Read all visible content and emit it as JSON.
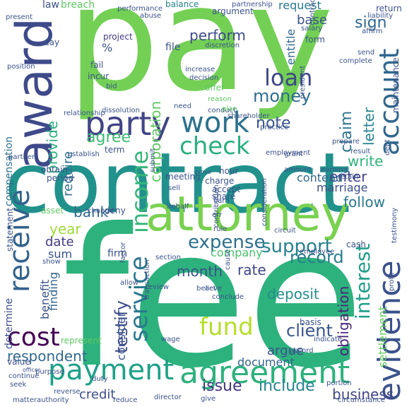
{
  "word_cloud": {
    "words": [
      {
        "text": "fee",
        "color": "#2db27d",
        "rotate": false
      },
      {
        "text": "pay",
        "color": "#73d055",
        "rotate": false
      },
      {
        "text": "contract",
        "color": "#21918c",
        "rotate": false
      },
      {
        "text": "attorney",
        "color": "#7ad151",
        "rotate": false
      },
      {
        "text": "award",
        "color": "#3e4a89",
        "rotate": true
      },
      {
        "text": "payment",
        "color": "#1fa187",
        "rotate": false
      },
      {
        "text": "agreement",
        "color": "#2db27d",
        "rotate": false
      },
      {
        "text": "evidence",
        "color": "#3b528b",
        "rotate": true
      },
      {
        "text": "party",
        "color": "#414487",
        "rotate": false
      },
      {
        "text": "work",
        "color": "#2c728e",
        "rotate": false
      },
      {
        "text": "check",
        "color": "#29af7f",
        "rotate": false
      },
      {
        "text": "account",
        "color": "#31688e",
        "rotate": true
      },
      {
        "text": "cost",
        "color": "#440154",
        "rotate": false
      },
      {
        "text": "receive",
        "color": "#33638d",
        "rotate": true
      },
      {
        "text": "service",
        "color": "#2a788e",
        "rotate": true
      },
      {
        "text": "fund",
        "color": "#b5de2b",
        "rotate": false
      },
      {
        "text": "income",
        "color": "#35b779",
        "rotate": true
      },
      {
        "text": "expense",
        "color": "#2d708e",
        "rotate": false
      },
      {
        "text": "support",
        "color": "#26828e",
        "rotate": false
      },
      {
        "text": "loan",
        "color": "#3f4788",
        "rotate": false
      },
      {
        "text": "money",
        "color": "#2e6e8e",
        "rotate": false
      },
      {
        "text": "interest",
        "color": "#1f9e89",
        "rotate": true
      },
      {
        "text": "client",
        "color": "#39568c",
        "rotate": false
      },
      {
        "text": "record",
        "color": "#287d8e",
        "rotate": false
      },
      {
        "text": "testify",
        "color": "#3e4c8a",
        "rotate": true
      },
      {
        "text": "include",
        "color": "#25848e",
        "rotate": false
      },
      {
        "text": "issue",
        "color": "#463480",
        "rotate": false
      },
      {
        "text": "respondent",
        "color": "#31688e",
        "rotate": false
      },
      {
        "text": "provide",
        "color": "#2ab07f",
        "rotate": true
      },
      {
        "text": "agree",
        "color": "#3dbc74",
        "rotate": false
      },
      {
        "text": "claim",
        "color": "#2c738e",
        "rotate": true
      },
      {
        "text": "letter",
        "color": "#25838e",
        "rotate": true
      },
      {
        "text": "note",
        "color": "#39558c",
        "rotate": false
      },
      {
        "text": "corporation",
        "color": "#5ec962",
        "rotate": true
      },
      {
        "text": "perform",
        "color": "#3e4989",
        "rotate": false
      },
      {
        "text": "bank",
        "color": "#31688e",
        "rotate": false
      },
      {
        "text": "year",
        "color": "#a0da39",
        "rotate": false
      },
      {
        "text": "rate",
        "color": "#404688",
        "rotate": false
      },
      {
        "text": "month",
        "color": "#3b528b",
        "rotate": false
      },
      {
        "text": "deposit",
        "color": "#228c8d",
        "rotate": false
      },
      {
        "text": "obligation",
        "color": "#482677",
        "rotate": true
      },
      {
        "text": "enter",
        "color": "#414487",
        "rotate": false
      },
      {
        "text": "write",
        "color": "#2fb47c",
        "rotate": false
      },
      {
        "text": "follow",
        "color": "#2a788e",
        "rotate": false
      },
      {
        "text": "business",
        "color": "#404387",
        "rotate": false
      },
      {
        "text": "credit",
        "color": "#3e4c8a",
        "rotate": false
      },
      {
        "text": "company",
        "color": "#4ac16d",
        "rotate": false
      },
      {
        "text": "argue",
        "color": "#3b528b",
        "rotate": false
      },
      {
        "text": "date",
        "color": "#443983",
        "rotate": false
      },
      {
        "text": "settlement",
        "color": "#65cb5e",
        "rotate": true
      },
      {
        "text": "compensation",
        "color": "#2e6f8e",
        "rotate": true
      },
      {
        "text": "determine",
        "color": "#3c4f8a",
        "rotate": true
      },
      {
        "text": "benefit",
        "color": "#3b528b",
        "rotate": true
      },
      {
        "text": "finding",
        "color": "#32648e",
        "rotate": true
      },
      {
        "text": "document",
        "color": "#32658e",
        "rotate": false
      },
      {
        "text": "require",
        "color": "#2d718e",
        "rotate": true
      },
      {
        "text": "consider",
        "color": "#3a548c",
        "rotate": true
      },
      {
        "text": "marriage",
        "color": "#3d4e8a",
        "rotate": false
      },
      {
        "text": "contend",
        "color": "#31688e",
        "rotate": false
      },
      {
        "text": "entitle",
        "color": "#31688e",
        "rotate": true
      },
      {
        "text": "sign",
        "color": "#31688e",
        "rotate": false
      },
      {
        "text": "request",
        "color": "#2a788e",
        "rotate": false
      },
      {
        "text": "base",
        "color": "#3b528b",
        "rotate": false
      },
      {
        "text": "law",
        "color": "#3b528b",
        "rotate": false
      },
      {
        "text": "breach",
        "color": "#5ec962",
        "rotate": false
      },
      {
        "text": "balance",
        "color": "#25838e",
        "rotate": false
      },
      {
        "text": "project",
        "color": "#443a83",
        "rotate": false
      },
      {
        "text": "file",
        "color": "#3b528b",
        "rotate": false
      },
      {
        "text": "fail",
        "color": "#3b528b",
        "rotate": false
      },
      {
        "text": "incur",
        "color": "#3b528b",
        "rotate": false
      },
      {
        "text": "term",
        "color": "#3b528b",
        "rotate": false
      },
      {
        "text": "sum",
        "color": "#3b528b",
        "rotate": false
      },
      {
        "text": "firm",
        "color": "#3b528b",
        "rotate": false
      },
      {
        "text": "hour",
        "color": "#3b528b",
        "rotate": false
      },
      {
        "text": "charge",
        "color": "#3b528b",
        "rotate": false
      },
      {
        "text": "accept",
        "color": "#3b528b",
        "rotate": false
      },
      {
        "text": "meeting",
        "color": "#3b528b",
        "rotate": false
      },
      {
        "text": "establish",
        "color": "#3b528b",
        "rotate": false
      },
      {
        "text": "asset",
        "color": "#5ec962",
        "rotate": false
      },
      {
        "text": "conduct",
        "color": "#3b528b",
        "rotate": false
      },
      {
        "text": "need",
        "color": "#3b528b",
        "rotate": false
      },
      {
        "text": "offer",
        "color": "#5ec962",
        "rotate": false
      },
      {
        "text": "salary",
        "color": "#3b528b",
        "rotate": false
      },
      {
        "text": "form",
        "color": "#3b528b",
        "rotate": false
      },
      {
        "text": "employment",
        "color": "#3b528b",
        "rotate": false
      },
      {
        "text": "represent",
        "color": "#5ec962",
        "rotate": false
      },
      {
        "text": "duty",
        "color": "#3b528b",
        "rotate": false
      },
      {
        "text": "wage",
        "color": "#3b528b",
        "rotate": false
      },
      {
        "text": "accord",
        "color": "#3b528b",
        "rotate": false
      },
      {
        "text": "basis",
        "color": "#3b528b",
        "rotate": false
      },
      {
        "text": "indicate",
        "color": "#3b528b",
        "rotate": false
      },
      {
        "text": "cash",
        "color": "#3b528b",
        "rotate": false
      },
      {
        "text": "result",
        "color": "#3b528b",
        "rotate": false
      },
      {
        "text": "statement",
        "color": "#3b528b",
        "rotate": true
      },
      {
        "text": "increase",
        "color": "#3b528b",
        "rotate": false
      },
      {
        "text": "decision",
        "color": "#3b528b",
        "rotate": false
      },
      {
        "text": "bid",
        "color": "#3b528b",
        "rotate": false
      },
      {
        "text": "affirm",
        "color": "#3b528b",
        "rotate": false
      },
      {
        "text": "return",
        "color": "#3b528b",
        "rotate": false
      },
      {
        "text": "send",
        "color": "#3b528b",
        "rotate": false
      },
      {
        "text": "maintenance",
        "color": "#3b528b",
        "rotate": true
      },
      {
        "text": "period",
        "color": "#3b528b",
        "rotate": false
      },
      {
        "text": "obtain",
        "color": "#3b528b",
        "rotate": false
      },
      {
        "text": "deny",
        "color": "#3b528b",
        "rotate": false
      },
      {
        "text": "review",
        "color": "#3b528b",
        "rotate": false
      },
      {
        "text": "section",
        "color": "#3b528b",
        "rotate": false
      },
      {
        "text": "employee",
        "color": "#3b528b",
        "rotate": false
      },
      {
        "text": "allow",
        "color": "#3b528b",
        "rotate": false
      },
      {
        "text": "show",
        "color": "#3b528b",
        "rotate": false
      },
      {
        "text": "circumstance",
        "color": "#3b528b",
        "rotate": false
      },
      {
        "text": "reduce",
        "color": "#3b528b",
        "rotate": false
      },
      {
        "text": "give",
        "color": "#3b528b",
        "rotate": false
      },
      {
        "text": "portion",
        "color": "#3b528b",
        "rotate": false
      },
      {
        "text": "director",
        "color": "#3b528b",
        "rotate": false
      },
      {
        "text": "seek",
        "color": "#3b528b",
        "rotate": false
      },
      {
        "text": "matterauthority",
        "color": "#3b528b",
        "rotate": false
      },
      {
        "text": "position",
        "color": "#3b528b",
        "rotate": false
      },
      {
        "text": "plan",
        "color": "#5ec962",
        "rotate": false
      },
      {
        "text": "practice",
        "color": "#3b528b",
        "rotate": false
      },
      {
        "text": "day",
        "color": "#3b528b",
        "rotate": false
      },
      {
        "text": "%",
        "color": "#3b528b",
        "rotate": false
      },
      {
        "text": "share",
        "color": "#3b528b",
        "rotate": false
      },
      {
        "text": "prove",
        "color": "#3b528b",
        "rotate": false
      },
      {
        "text": "earn",
        "color": "#3b528b",
        "rotate": false
      },
      {
        "text": "change",
        "color": "#3b528b",
        "rotate": false
      },
      {
        "text": "present",
        "color": "#3b528b",
        "rotate": false
      },
      {
        "text": "transaction",
        "color": "#3b528b",
        "rotate": true
      },
      {
        "text": "dissolution",
        "color": "#3b528b",
        "rotate": false
      },
      {
        "text": "shareholder",
        "color": "#3b528b",
        "rotate": false
      },
      {
        "text": "discretion",
        "color": "#3b528b",
        "rotate": false
      },
      {
        "text": "president",
        "color": "#3b528b",
        "rotate": true
      },
      {
        "text": "contractor",
        "color": "#3b528b",
        "rotate": true
      },
      {
        "text": "argument",
        "color": "#3b528b",
        "rotate": false
      },
      {
        "text": "submit",
        "color": "#3b528b",
        "rotate": true
      },
      {
        "text": "conclude",
        "color": "#3b528b",
        "rotate": false
      },
      {
        "text": "believe",
        "color": "#3b528b",
        "rotate": false
      },
      {
        "text": "act",
        "color": "#3b528b",
        "rotate": false
      },
      {
        "text": "sell",
        "color": "#3b528b",
        "rotate": false
      },
      {
        "text": "err",
        "color": "#3b528b",
        "rotate": false
      },
      {
        "text": "rule",
        "color": "#3b528b",
        "rotate": false
      },
      {
        "text": "value",
        "color": "#3b528b",
        "rotate": false
      },
      {
        "text": "purpose",
        "color": "#3b528b",
        "rotate": false
      },
      {
        "text": "continue",
        "color": "#3b528b",
        "rotate": false
      },
      {
        "text": "behalf",
        "color": "#3b528b",
        "rotate": false
      },
      {
        "text": "reverse",
        "color": "#3b528b",
        "rotate": false
      },
      {
        "text": "officer",
        "color": "#3b528b",
        "rotate": false
      },
      {
        "text": "relationship",
        "color": "#3b528b",
        "rotate": false
      },
      {
        "text": "partner",
        "color": "#3b528b",
        "rotate": false
      },
      {
        "text": "grant",
        "color": "#3b528b",
        "rotate": false
      },
      {
        "text": "retain",
        "color": "#3b528b",
        "rotate": false
      },
      {
        "text": "amount",
        "color": "#3b528b",
        "rotate": false
      },
      {
        "text": "testimony",
        "color": "#3b528b",
        "rotate": true
      },
      {
        "text": "debt",
        "color": "#3b528b",
        "rotate": true
      },
      {
        "text": "liability",
        "color": "#3b528b",
        "rotate": false
      },
      {
        "text": "performance",
        "color": "#3b528b",
        "rotate": false
      },
      {
        "text": "partnership",
        "color": "#3b528b",
        "rotate": false
      },
      {
        "text": "abuse",
        "color": "#3b528b",
        "rotate": false
      },
      {
        "text": "complete",
        "color": "#3b528b",
        "rotate": false
      },
      {
        "text": "contribution",
        "color": "#3b528b",
        "rotate": true
      },
      {
        "text": "reason",
        "color": "#5ec962",
        "rotate": false
      },
      {
        "text": "earning",
        "color": "#3b528b",
        "rotate": false
      },
      {
        "text": "prepare",
        "color": "#3b528b",
        "rotate": false
      },
      {
        "text": "factor",
        "color": "#3b528b",
        "rotate": true
      },
      {
        "text": "circuit",
        "color": "#3b528b",
        "rotate": false
      },
      {
        "text": "profit",
        "color": "#3b528b",
        "rotate": true
      },
      {
        "text": "cause",
        "color": "#3b528b",
        "rotate": true
      },
      {
        "text": "consideration",
        "color": "#3b528b",
        "rotate": true
      }
    ]
  }
}
